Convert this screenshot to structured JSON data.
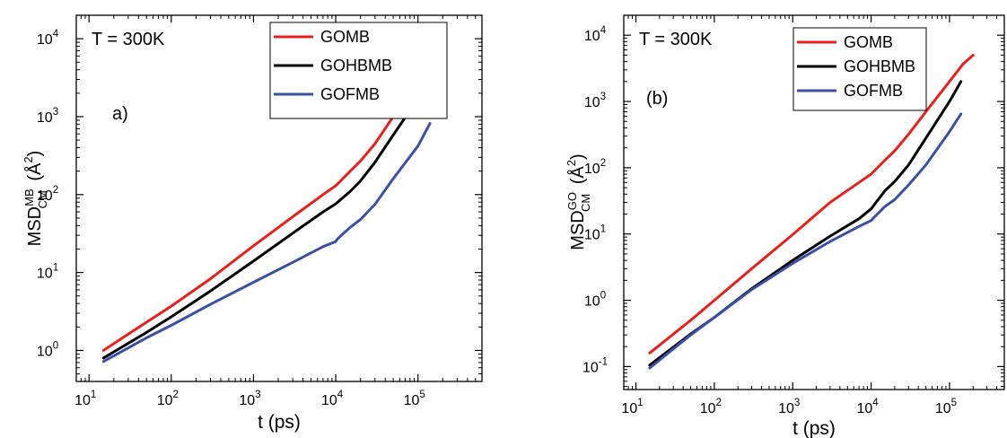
{
  "colors": {
    "GOMB": "#e8201c",
    "GOHBMB": "#000000",
    "GOFMB": "#3a4fa6"
  },
  "chart_data": [
    {
      "type": "line",
      "panel_label": "a)",
      "annotation": "T = 300K",
      "xlabel": "t (ps)",
      "ylabel": {
        "base": "MSD",
        "sub": "CM",
        "sup": "MB",
        "unit": "(Å",
        "unit_sup": "2",
        "unit_end": ")"
      },
      "x_scale": "log",
      "y_scale": "log",
      "xlim": [
        7,
        600000
      ],
      "ylim": [
        0.4,
        20000
      ],
      "x_ticks": [
        {
          "base": "10",
          "exp": "1",
          "value": 10
        },
        {
          "base": "10",
          "exp": "2",
          "value": 100
        },
        {
          "base": "10",
          "exp": "3",
          "value": 1000
        },
        {
          "base": "10",
          "exp": "4",
          "value": 10000
        },
        {
          "base": "10",
          "exp": "5",
          "value": 100000
        }
      ],
      "y_ticks": [
        {
          "base": "10",
          "exp": "0",
          "value": 1
        },
        {
          "base": "10",
          "exp": "1",
          "value": 10
        },
        {
          "base": "10",
          "exp": "2",
          "value": 100
        },
        {
          "base": "10",
          "exp": "3",
          "value": 1000
        },
        {
          "base": "10",
          "exp": "4",
          "value": 10000
        }
      ],
      "legend_position": "top-right",
      "series": [
        {
          "name": "GOMB",
          "color": "#e8201c",
          "x": [
            15,
            50,
            100,
            300,
            1000,
            3000,
            7000,
            10000,
            15000,
            20000,
            30000,
            50000,
            100000,
            150000,
            200000
          ],
          "y": [
            1.0,
            2.3,
            3.7,
            8.3,
            22,
            52,
            100,
            130,
            200,
            270,
            450,
            1000,
            2800,
            4700,
            6000
          ]
        },
        {
          "name": "GOHBMB",
          "color": "#000000",
          "x": [
            15,
            50,
            100,
            300,
            1000,
            3000,
            7000,
            10000,
            15000,
            20000,
            30000,
            50000,
            100000,
            140000
          ],
          "y": [
            0.8,
            1.7,
            2.7,
            5.8,
            14,
            32,
            60,
            76,
            110,
            150,
            260,
            580,
            1700,
            3000
          ]
        },
        {
          "name": "GOFMB",
          "color": "#3a4fa6",
          "x": [
            15,
            50,
            100,
            300,
            1000,
            3000,
            7000,
            10000,
            10500,
            15000,
            20000,
            30000,
            50000,
            100000,
            140000
          ],
          "y": [
            0.72,
            1.45,
            2.1,
            3.9,
            7.5,
            13.5,
            21.5,
            25,
            27,
            38,
            48,
            75,
            160,
            420,
            820
          ]
        }
      ]
    },
    {
      "type": "line",
      "panel_label": "(b)",
      "annotation": "T = 300K",
      "xlabel": "t (ps)",
      "ylabel": {
        "base": "MSD",
        "sub": "CM",
        "sup": "GO",
        "unit": "(Å",
        "unit_sup": "2",
        "unit_end": ")"
      },
      "x_scale": "log",
      "y_scale": "log",
      "xlim": [
        7,
        500000
      ],
      "ylim": [
        0.045,
        20000
      ],
      "x_ticks": [
        {
          "base": "10",
          "exp": "1",
          "value": 10
        },
        {
          "base": "10",
          "exp": "2",
          "value": 100
        },
        {
          "base": "10",
          "exp": "3",
          "value": 1000
        },
        {
          "base": "10",
          "exp": "4",
          "value": 10000
        },
        {
          "base": "10",
          "exp": "5",
          "value": 100000
        }
      ],
      "y_ticks": [
        {
          "base": "10",
          "exp": "-1",
          "value": 0.1
        },
        {
          "base": "10",
          "exp": "0",
          "value": 1
        },
        {
          "base": "10",
          "exp": "1",
          "value": 10
        },
        {
          "base": "10",
          "exp": "2",
          "value": 100
        },
        {
          "base": "10",
          "exp": "3",
          "value": 1000
        },
        {
          "base": "10",
          "exp": "4",
          "value": 10000
        }
      ],
      "legend_position": "top-right",
      "series": [
        {
          "name": "GOMB",
          "color": "#e8201c",
          "x": [
            15,
            50,
            100,
            300,
            1000,
            3000,
            7000,
            10000,
            15000,
            20000,
            30000,
            50000,
            100000,
            150000,
            200000
          ],
          "y": [
            0.16,
            0.5,
            1.0,
            3.0,
            9.8,
            30,
            60,
            80,
            130,
            180,
            320,
            700,
            2000,
            3700,
            5000
          ]
        },
        {
          "name": "GOHBMB",
          "color": "#000000",
          "x": [
            15,
            50,
            100,
            300,
            1000,
            3000,
            7000,
            10000,
            15000,
            20000,
            30000,
            50000,
            100000,
            140000
          ],
          "y": [
            0.105,
            0.31,
            0.55,
            1.5,
            4.0,
            9.3,
            17,
            24,
            45,
            62,
            110,
            280,
            1000,
            2000
          ]
        },
        {
          "name": "GOFMB",
          "color": "#3a4fa6",
          "x": [
            15,
            50,
            100,
            300,
            1000,
            3000,
            7000,
            10000,
            10500,
            15000,
            20000,
            30000,
            50000,
            100000,
            140000
          ],
          "y": [
            0.095,
            0.3,
            0.55,
            1.45,
            3.6,
            7.7,
            13,
            16,
            17,
            26,
            33,
            55,
            110,
            350,
            650
          ]
        }
      ]
    }
  ]
}
